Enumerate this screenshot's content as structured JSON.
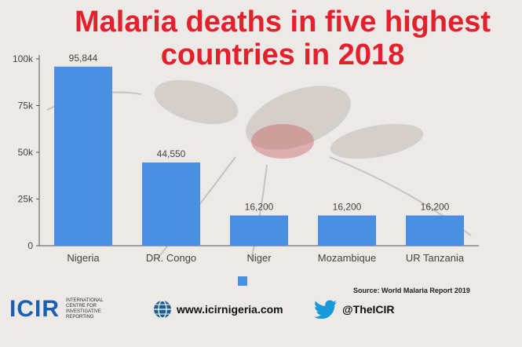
{
  "title_line1": "Malaria deaths in five highest",
  "title_line2": "countries in 2018",
  "source": "Source: World Malaria Report 2019",
  "footer": {
    "logo": "ICIR",
    "logo_sub": "INTERNATIONAL CENTRE FOR INVESTIGATIVE REPORTING",
    "website": "www.icirnigeria.com",
    "twitter": "@TheICIR"
  },
  "colors": {
    "bar": "#4a90e2",
    "title": "#e3202b",
    "logo": "#1a5fb4"
  },
  "chart_data": {
    "type": "bar",
    "title": "Malaria deaths in five highest countries in 2018",
    "categories": [
      "Nigeria",
      "DR. Congo",
      "Niger",
      "Mozambique",
      "UR Tanzania"
    ],
    "values": [
      95844,
      44550,
      16200,
      16200,
      16200
    ],
    "value_labels": [
      "95,844",
      "44,550",
      "16,200",
      "16,200",
      "16,200"
    ],
    "yticks": [
      0,
      25000,
      50000,
      75000,
      100000
    ],
    "ytick_labels": [
      "0",
      "25k",
      "50k",
      "75k",
      "100k"
    ],
    "ylim": [
      0,
      100000
    ],
    "xlabel": "",
    "ylabel": "",
    "grid": false,
    "legend": "bottom-center"
  }
}
